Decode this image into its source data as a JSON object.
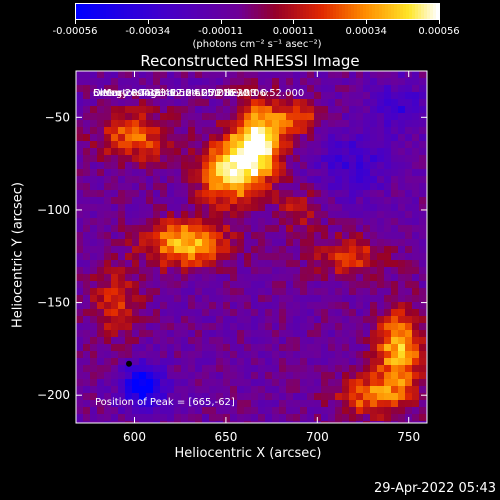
{
  "colorbar": {
    "tick_labels": [
      "-0.00056",
      "-0.00034",
      "-0.00011",
      "0.00011",
      "0.00034",
      "0.00056"
    ],
    "unit_label": "(photons cm⁻² s⁻¹ asec⁻²)"
  },
  "info": {
    "time_range": "5-Mar-2004 23:02:24.000 to 23:06:52.000",
    "detectors": "Detectors: 3F 4F 5F 6F 7F 8F, Att 0",
    "energy": "Energy Range: 12.0 - 25.0 keV",
    "clean": "Clean      Total counts: 5.21E+03",
    "peak": "Position of Peak = [665,-62]"
  },
  "timestamp": "29-Apr-2022 05:43",
  "chart_data": {
    "type": "heatmap",
    "title": "Reconstructed RHESSI Image",
    "xlabel": "Heliocentric X (arcsec)",
    "ylabel": "Heliocentric Y (arcsec)",
    "xlim": [
      568,
      760
    ],
    "ylim": [
      -215,
      -25
    ],
    "xticks": [
      600,
      650,
      700,
      750
    ],
    "yticks": [
      -50,
      -100,
      -150,
      -200
    ],
    "zlim": [
      -0.00056,
      0.00056
    ],
    "colormap": "rhessi-heat",
    "peak_position": [
      665,
      -62
    ],
    "sources": [
      {
        "x": 668,
        "y": -62,
        "sx": 10,
        "sy": 14,
        "amp": 1.0
      },
      {
        "x": 652,
        "y": -80,
        "sx": 12,
        "sy": 12,
        "amp": 0.85
      },
      {
        "x": 628,
        "y": -118,
        "sx": 16,
        "sy": 9,
        "amp": 0.8
      },
      {
        "x": 600,
        "y": -60,
        "sx": 14,
        "sy": 10,
        "amp": 0.55
      },
      {
        "x": 690,
        "y": -50,
        "sx": 8,
        "sy": 6,
        "amp": 0.5
      },
      {
        "x": 745,
        "y": -175,
        "sx": 9,
        "sy": 15,
        "amp": 0.8
      },
      {
        "x": 730,
        "y": -200,
        "sx": 14,
        "sy": 8,
        "amp": 0.6
      },
      {
        "x": 718,
        "y": -125,
        "sx": 14,
        "sy": 8,
        "amp": 0.45
      },
      {
        "x": 690,
        "y": -100,
        "sx": 8,
        "sy": 8,
        "amp": 0.35
      },
      {
        "x": 590,
        "y": -150,
        "sx": 10,
        "sy": 14,
        "amp": 0.4
      },
      {
        "x": 605,
        "y": -195,
        "sx": 8,
        "sy": 8,
        "amp": -0.8
      },
      {
        "x": 720,
        "y": -75,
        "sx": 14,
        "sy": 12,
        "amp": -0.35
      },
      {
        "x": 745,
        "y": -45,
        "sx": 10,
        "sy": 10,
        "amp": -0.35
      }
    ]
  }
}
